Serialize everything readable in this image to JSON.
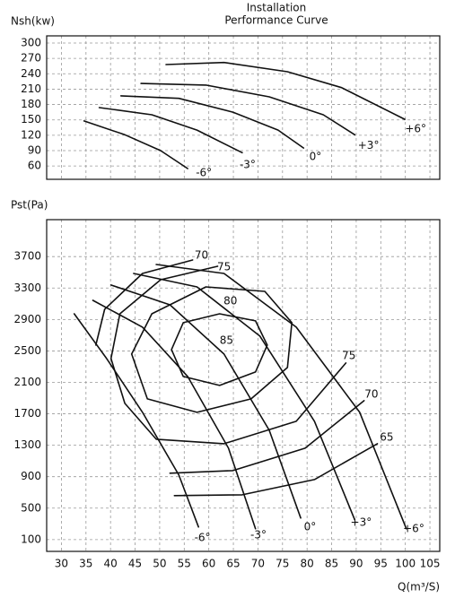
{
  "chart_data": [
    {
      "type": "line",
      "title": "Installation",
      "subtitle": "Performance Curve",
      "ylabel": "Nsh(kw)",
      "xlim": [
        27,
        107
      ],
      "ylim": [
        34,
        314
      ],
      "yticks": [
        60,
        90,
        120,
        150,
        180,
        210,
        240,
        270,
        300
      ],
      "grid": true,
      "color": "#111111",
      "series": [
        {
          "x": [
            34.6,
            42.9,
            50.2,
            55.7
          ],
          "values": [
            148,
            121,
            90,
            55
          ]
        },
        {
          "x": [
            37.7,
            48.4,
            57.6,
            66.8
          ],
          "values": [
            174,
            160,
            130,
            86
          ]
        },
        {
          "x": [
            42.1,
            53.9,
            64.9,
            74.1,
            79.3
          ],
          "values": [
            197,
            192,
            165,
            130,
            95
          ]
        },
        {
          "x": [
            46.2,
            59.4,
            72.3,
            83.3,
            89.7
          ],
          "values": [
            221,
            218,
            195,
            160,
            121
          ]
        },
        {
          "x": [
            51.3,
            63.1,
            76,
            87,
            99.9
          ],
          "values": [
            258,
            262,
            244,
            213,
            151
          ]
        }
      ],
      "annotations": [
        {
          "text": "-6°",
          "x": 59.0,
          "y": 46
        },
        {
          "text": "-3°",
          "x": 67.9,
          "y": 62
        },
        {
          "text": "0°",
          "x": 81.7,
          "y": 78
        },
        {
          "text": "+3°",
          "x": 92.5,
          "y": 100
        },
        {
          "text": "+6°",
          "x": 102.1,
          "y": 132
        }
      ]
    },
    {
      "type": "line",
      "ylabel": "Pst(Pa)",
      "xlabel": "Q(m³/S)",
      "xlim": [
        27,
        107
      ],
      "ylim": [
        -50,
        4170
      ],
      "xticks": [
        30,
        35,
        40,
        45,
        50,
        55,
        60,
        65,
        70,
        75,
        80,
        85,
        90,
        95,
        100,
        105
      ],
      "yticks": [
        100,
        500,
        900,
        1300,
        1700,
        2100,
        2500,
        2900,
        3300,
        3700
      ],
      "grid": true,
      "color": "#111111",
      "series": [
        {
          "x": [
            32.6,
            39.2,
            46.5,
            53.9,
            57.9
          ],
          "values": [
            2973,
            2403,
            1719,
            921,
            260
          ]
        },
        {
          "x": [
            36.4,
            46.5,
            55.7,
            64,
            69.5
          ],
          "values": [
            3144,
            2802,
            2175,
            1263,
            237
          ]
        },
        {
          "x": [
            40.1,
            52.1,
            63.1,
            72.3,
            78.7
          ],
          "values": [
            3338,
            3087,
            2460,
            1491,
            374
          ]
        },
        {
          "x": [
            44.7,
            57.6,
            70.4,
            81.5,
            89.7
          ],
          "values": [
            3486,
            3315,
            2688,
            1605,
            351
          ]
        },
        {
          "x": [
            49.3,
            63.1,
            77.8,
            90.7,
            100.2
          ],
          "values": [
            3600,
            3486,
            2802,
            1719,
            237
          ]
        },
        {
          "x": [
            52.4,
            54.8,
            62.2,
            69.5,
            71.9,
            69.5,
            62.2,
            54.8,
            52.4
          ],
          "values": [
            2517,
            2859,
            2973,
            2882,
            2574,
            2232,
            2061,
            2175,
            2517
          ]
        },
        {
          "x": [
            44.3,
            48.4,
            59.4,
            71.4,
            76.9,
            76,
            68.6,
            57.6,
            47.5,
            44.3
          ],
          "values": [
            2460,
            2973,
            3315,
            3258,
            2859,
            2289,
            1890,
            1719,
            1890,
            2460
          ]
        },
        {
          "x": [
            61.8,
            50.2,
            41.9,
            40.1,
            42.9,
            49.3,
            63.1,
            77.8,
            87.9
          ],
          "values": [
            3577,
            3406,
            2973,
            2403,
            1833,
            1377,
            1320,
            1605,
            2346
          ]
        },
        {
          "x": [
            56.7,
            46.5,
            38.8,
            37.0,
            null,
            52.1,
            64.9,
            79.6,
            91.6
          ],
          "values": [
            3657,
            3486,
            3030,
            2574,
            null,
            944,
            978,
            1263,
            1867
          ]
        },
        {
          "x": [
            53.0,
            66.8,
            81.5,
            94.3
          ],
          "values": [
            659,
            670,
            864,
            1320
          ]
        }
      ],
      "annotations": [
        {
          "text": "70",
          "x": 58.5,
          "y": 3714
        },
        {
          "text": "75",
          "x": 63.1,
          "y": 3566
        },
        {
          "text": "80",
          "x": 64.4,
          "y": 3132
        },
        {
          "text": "85",
          "x": 63.6,
          "y": 2631
        },
        {
          "text": "75",
          "x": 88.5,
          "y": 2437
        },
        {
          "text": "70",
          "x": 93.1,
          "y": 1947
        },
        {
          "text": "65",
          "x": 96.2,
          "y": 1400
        },
        {
          "text": "-6°",
          "x": 58.7,
          "y": 123
        },
        {
          "text": "-3°",
          "x": 70.1,
          "y": 157
        },
        {
          "text": "0°",
          "x": 80.6,
          "y": 260
        },
        {
          "text": "+3°",
          "x": 91,
          "y": 317
        },
        {
          "text": "+6°",
          "x": 101.7,
          "y": 237
        }
      ]
    }
  ]
}
